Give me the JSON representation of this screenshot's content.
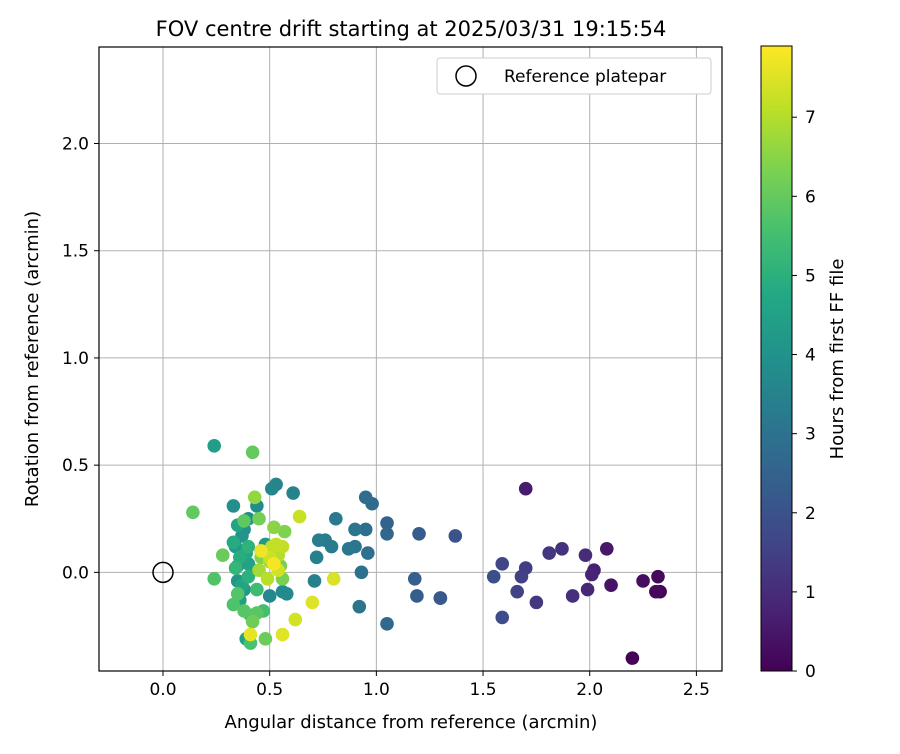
{
  "chart_data": {
    "type": "scatter",
    "title": "FOV centre drift starting at 2025/03/31 19:15:54",
    "xlabel": "Angular distance from reference (arcmin)",
    "ylabel": "Rotation from reference (arcmin)",
    "xlim": [
      -0.3,
      2.62
    ],
    "ylim": [
      -0.46,
      2.45
    ],
    "xticks": [
      "0.0",
      "0.5",
      "1.0",
      "1.5",
      "2.0",
      "2.5"
    ],
    "xtick_values": [
      0,
      0.5,
      1.0,
      1.5,
      2.0,
      2.5
    ],
    "yticks": [
      "0.0",
      "0.5",
      "1.0",
      "1.5",
      "2.0"
    ],
    "ytick_values": [
      0,
      0.5,
      1.0,
      1.5,
      2.0
    ],
    "grid": true,
    "legend": {
      "position": "top-right",
      "entries": [
        "Reference platepar"
      ]
    },
    "reference_point": {
      "x": 0.0,
      "y": 0.0,
      "marker": "open-circle"
    },
    "colorbar": {
      "label": "Hours from first FF file",
      "range": [
        0,
        7.9
      ],
      "ticks": [
        "0",
        "1",
        "2",
        "3",
        "4",
        "5",
        "6",
        "7"
      ],
      "tick_values": [
        0,
        1,
        2,
        3,
        4,
        5,
        6,
        7
      ],
      "colormap": "viridis"
    },
    "series": [
      {
        "points": [
          {
            "x": 2.2,
            "y": -0.4,
            "c": 0.05
          },
          {
            "x": 2.33,
            "y": -0.09,
            "c": 0.1
          },
          {
            "x": 2.32,
            "y": -0.02,
            "c": 0.15
          },
          {
            "x": 2.31,
            "y": -0.09,
            "c": 0.2
          },
          {
            "x": 2.25,
            "y": -0.04,
            "c": 0.3
          },
          {
            "x": 2.1,
            "y": -0.06,
            "c": 0.4
          },
          {
            "x": 2.08,
            "y": 0.11,
            "c": 0.5
          },
          {
            "x": 1.7,
            "y": 0.39,
            "c": 0.6
          },
          {
            "x": 2.02,
            "y": 0.01,
            "c": 0.7
          },
          {
            "x": 2.01,
            "y": -0.01,
            "c": 0.8
          },
          {
            "x": 1.99,
            "y": -0.08,
            "c": 0.9
          },
          {
            "x": 1.98,
            "y": 0.08,
            "c": 1.0
          },
          {
            "x": 1.92,
            "y": -0.11,
            "c": 1.05
          },
          {
            "x": 1.87,
            "y": 0.11,
            "c": 1.1
          },
          {
            "x": 1.81,
            "y": 0.09,
            "c": 1.2
          },
          {
            "x": 1.75,
            "y": -0.14,
            "c": 1.3
          },
          {
            "x": 1.7,
            "y": 0.02,
            "c": 1.4
          },
          {
            "x": 1.68,
            "y": -0.02,
            "c": 1.5
          },
          {
            "x": 1.66,
            "y": -0.09,
            "c": 1.55
          },
          {
            "x": 1.59,
            "y": 0.04,
            "c": 1.65
          },
          {
            "x": 1.59,
            "y": -0.21,
            "c": 1.8
          },
          {
            "x": 1.55,
            "y": -0.02,
            "c": 1.9
          },
          {
            "x": 1.37,
            "y": 0.17,
            "c": 2.0
          },
          {
            "x": 1.3,
            "y": -0.12,
            "c": 2.1
          },
          {
            "x": 1.3,
            "y": -0.12,
            "c": 2.2
          },
          {
            "x": 1.2,
            "y": 0.18,
            "c": 2.25
          },
          {
            "x": 1.19,
            "y": -0.11,
            "c": 2.35
          },
          {
            "x": 1.18,
            "y": -0.03,
            "c": 2.4
          },
          {
            "x": 1.05,
            "y": 0.23,
            "c": 2.5
          },
          {
            "x": 1.05,
            "y": 0.18,
            "c": 2.6
          },
          {
            "x": 1.05,
            "y": -0.24,
            "c": 2.7
          },
          {
            "x": 0.98,
            "y": 0.32,
            "c": 2.75
          },
          {
            "x": 0.95,
            "y": 0.35,
            "c": 2.8
          },
          {
            "x": 0.95,
            "y": 0.2,
            "c": 2.85
          },
          {
            "x": 0.96,
            "y": 0.09,
            "c": 2.9
          },
          {
            "x": 0.93,
            "y": 0.0,
            "c": 2.95
          },
          {
            "x": 0.92,
            "y": -0.16,
            "c": 3.0
          },
          {
            "x": 0.9,
            "y": 0.2,
            "c": 3.05
          },
          {
            "x": 0.9,
            "y": 0.12,
            "c": 3.1
          },
          {
            "x": 0.87,
            "y": 0.11,
            "c": 3.15
          },
          {
            "x": 0.81,
            "y": 0.25,
            "c": 3.2
          },
          {
            "x": 0.79,
            "y": 0.12,
            "c": 3.25
          },
          {
            "x": 0.76,
            "y": 0.15,
            "c": 3.3
          },
          {
            "x": 0.73,
            "y": 0.15,
            "c": 3.35
          },
          {
            "x": 0.72,
            "y": 0.07,
            "c": 3.4
          },
          {
            "x": 0.71,
            "y": -0.04,
            "c": 3.45
          },
          {
            "x": 0.61,
            "y": 0.37,
            "c": 3.5
          },
          {
            "x": 0.53,
            "y": 0.41,
            "c": 3.55
          },
          {
            "x": 0.51,
            "y": 0.39,
            "c": 3.6
          },
          {
            "x": 0.5,
            "y": -0.11,
            "c": 3.65
          },
          {
            "x": 0.58,
            "y": -0.1,
            "c": 3.7
          },
          {
            "x": 0.56,
            "y": -0.09,
            "c": 3.75
          },
          {
            "x": 0.44,
            "y": 0.31,
            "c": 3.8
          },
          {
            "x": 0.4,
            "y": 0.25,
            "c": 3.85
          },
          {
            "x": 0.33,
            "y": 0.31,
            "c": 3.9
          },
          {
            "x": 0.38,
            "y": 0.2,
            "c": 3.95
          },
          {
            "x": 0.46,
            "y": 0.1,
            "c": 4.0
          },
          {
            "x": 0.37,
            "y": 0.17,
            "c": 4.05
          },
          {
            "x": 0.35,
            "y": 0.03,
            "c": 4.1
          },
          {
            "x": 0.35,
            "y": -0.04,
            "c": 4.15
          },
          {
            "x": 0.38,
            "y": -0.08,
            "c": 4.2
          },
          {
            "x": 0.34,
            "y": 0.12,
            "c": 4.25
          },
          {
            "x": 0.48,
            "y": 0.13,
            "c": 4.3
          },
          {
            "x": 0.24,
            "y": 0.59,
            "c": 4.35
          },
          {
            "x": 0.36,
            "y": -0.13,
            "c": 4.4
          },
          {
            "x": 0.39,
            "y": -0.31,
            "c": 4.45
          },
          {
            "x": 0.4,
            "y": 0.04,
            "c": 4.5
          },
          {
            "x": 0.42,
            "y": 0.01,
            "c": 4.55
          },
          {
            "x": 0.35,
            "y": 0.22,
            "c": 4.6
          },
          {
            "x": 0.37,
            "y": -0.06,
            "c": 4.65
          },
          {
            "x": 0.39,
            "y": 0.09,
            "c": 4.7
          },
          {
            "x": 0.33,
            "y": 0.14,
            "c": 4.8
          },
          {
            "x": 0.36,
            "y": 0.07,
            "c": 4.9
          },
          {
            "x": 0.4,
            "y": -0.02,
            "c": 5.0
          },
          {
            "x": 0.4,
            "y": 0.12,
            "c": 5.1
          },
          {
            "x": 0.34,
            "y": 0.02,
            "c": 5.2
          },
          {
            "x": 0.41,
            "y": -0.2,
            "c": 5.3
          },
          {
            "x": 0.44,
            "y": -0.08,
            "c": 5.4
          },
          {
            "x": 0.47,
            "y": -0.18,
            "c": 5.5
          },
          {
            "x": 0.41,
            "y": -0.33,
            "c": 5.6
          },
          {
            "x": 0.33,
            "y": -0.15,
            "c": 5.65
          },
          {
            "x": 0.24,
            "y": -0.03,
            "c": 5.7
          },
          {
            "x": 0.35,
            "y": -0.1,
            "c": 5.75
          },
          {
            "x": 0.38,
            "y": -0.18,
            "c": 5.8
          },
          {
            "x": 0.44,
            "y": -0.19,
            "c": 5.85
          },
          {
            "x": 0.38,
            "y": 0.24,
            "c": 5.9
          },
          {
            "x": 0.14,
            "y": 0.28,
            "c": 5.95
          },
          {
            "x": 0.42,
            "y": 0.56,
            "c": 6.0
          },
          {
            "x": 0.28,
            "y": 0.08,
            "c": 6.05
          },
          {
            "x": 0.48,
            "y": -0.31,
            "c": 6.1
          },
          {
            "x": 0.42,
            "y": -0.23,
            "c": 6.15
          },
          {
            "x": 0.45,
            "y": 0.25,
            "c": 6.2
          },
          {
            "x": 0.55,
            "y": 0.03,
            "c": 6.25
          },
          {
            "x": 0.56,
            "y": -0.03,
            "c": 6.3
          },
          {
            "x": 0.57,
            "y": 0.19,
            "c": 6.35
          },
          {
            "x": 0.46,
            "y": 0.07,
            "c": 6.4
          },
          {
            "x": 0.52,
            "y": 0.21,
            "c": 6.5
          },
          {
            "x": 0.43,
            "y": 0.35,
            "c": 6.6
          },
          {
            "x": 0.55,
            "y": 0.12,
            "c": 6.7
          },
          {
            "x": 0.45,
            "y": 0.01,
            "c": 6.8
          },
          {
            "x": 0.5,
            "y": 0.05,
            "c": 6.9
          },
          {
            "x": 0.54,
            "y": 0.08,
            "c": 7.0
          },
          {
            "x": 0.49,
            "y": -0.03,
            "c": 7.05
          },
          {
            "x": 0.51,
            "y": 0.12,
            "c": 7.1
          },
          {
            "x": 0.56,
            "y": 0.12,
            "c": 7.15
          },
          {
            "x": 0.53,
            "y": 0.13,
            "c": 7.2
          },
          {
            "x": 0.64,
            "y": 0.26,
            "c": 7.25
          },
          {
            "x": 0.5,
            "y": 0.07,
            "c": 7.3
          },
          {
            "x": 0.54,
            "y": 0.01,
            "c": 7.35
          },
          {
            "x": 0.62,
            "y": -0.22,
            "c": 7.4
          },
          {
            "x": 0.8,
            "y": -0.03,
            "c": 7.45
          },
          {
            "x": 0.7,
            "y": -0.14,
            "c": 7.5
          },
          {
            "x": 0.56,
            "y": -0.29,
            "c": 7.55
          },
          {
            "x": 0.41,
            "y": -0.29,
            "c": 7.6
          },
          {
            "x": 0.46,
            "y": 0.1,
            "c": 7.7
          },
          {
            "x": 0.52,
            "y": 0.04,
            "c": 7.8
          }
        ]
      }
    ]
  }
}
